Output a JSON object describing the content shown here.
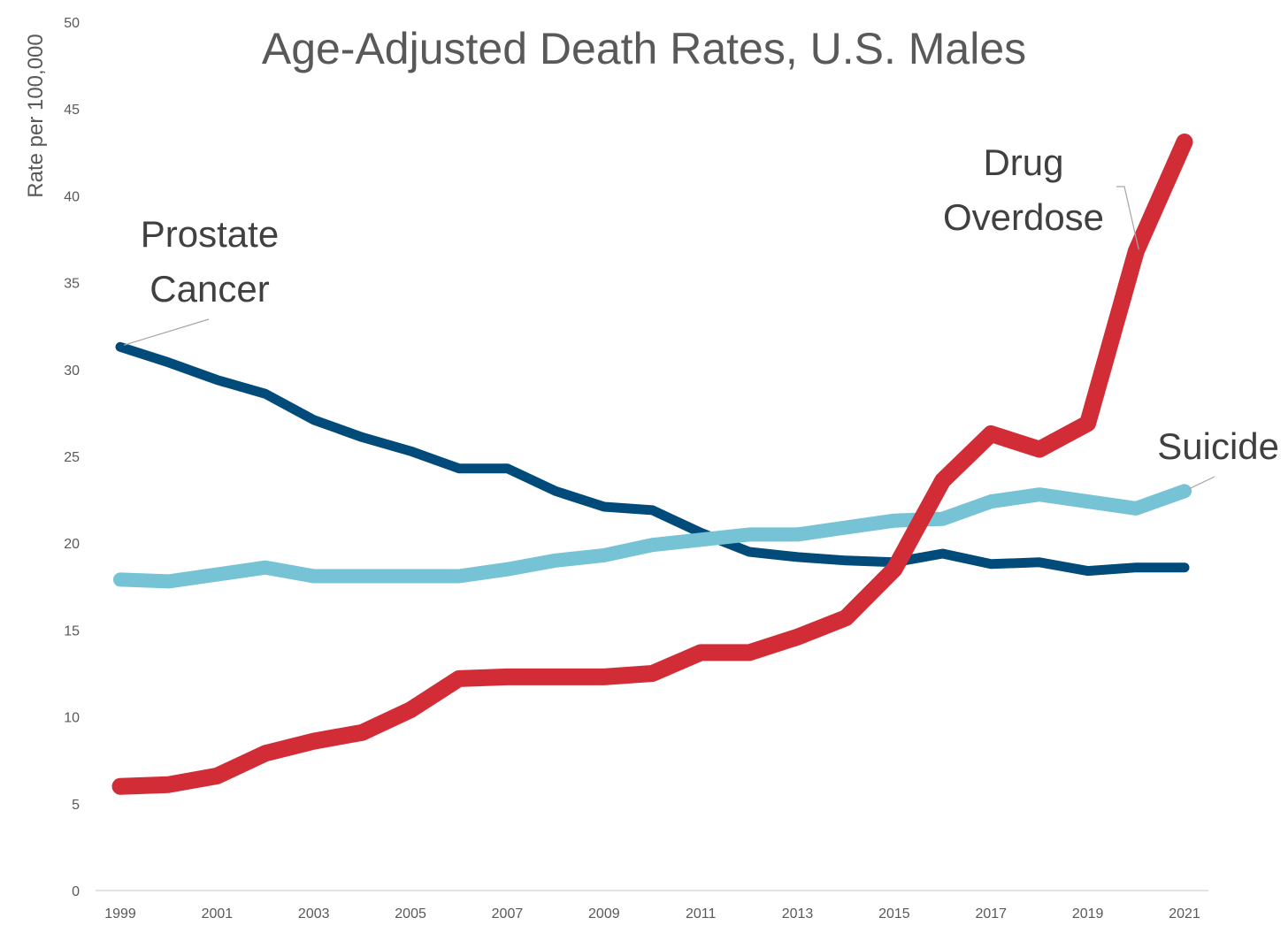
{
  "chart_data": {
    "type": "line",
    "title": "Age-Adjusted Death Rates, U.S. Males",
    "xlabel": "",
    "ylabel": "Rate per 100,000",
    "ylim": [
      0,
      50
    ],
    "yticks": [
      0,
      5,
      10,
      15,
      20,
      25,
      30,
      35,
      40,
      45,
      50
    ],
    "x": [
      1999,
      2000,
      2001,
      2002,
      2003,
      2004,
      2005,
      2006,
      2007,
      2008,
      2009,
      2010,
      2011,
      2012,
      2013,
      2014,
      2015,
      2016,
      2017,
      2018,
      2019,
      2020,
      2021
    ],
    "xtick_labels": [
      "1999",
      "2001",
      "2003",
      "2005",
      "2007",
      "2009",
      "2011",
      "2013",
      "2015",
      "2017",
      "2019",
      "2021"
    ],
    "grid": false,
    "legend": "none (series labeled directly by annotations)",
    "series": [
      {
        "name": "Prostate Cancer",
        "label_lines": [
          "Prostate",
          "Cancer"
        ],
        "color": "#004B7A",
        "values": [
          31.3,
          30.4,
          29.4,
          28.6,
          27.1,
          26.1,
          25.3,
          24.3,
          24.3,
          23.0,
          22.1,
          21.9,
          20.6,
          19.5,
          19.2,
          19.0,
          18.9,
          19.4,
          18.8,
          18.9,
          18.4,
          18.6,
          18.6
        ]
      },
      {
        "name": "Suicide",
        "label_lines": [
          "Suicide"
        ],
        "color": "#76C3D5",
        "values": [
          17.9,
          17.8,
          18.2,
          18.6,
          18.1,
          18.1,
          18.1,
          18.1,
          18.5,
          19.0,
          19.3,
          19.9,
          20.2,
          20.5,
          20.5,
          20.9,
          21.3,
          21.4,
          22.4,
          22.8,
          22.4,
          22.0,
          23.0
        ]
      },
      {
        "name": "Drug Overdose",
        "label_lines": [
          "Drug",
          "Overdose"
        ],
        "color": "#D22D37",
        "values": [
          6.0,
          6.1,
          6.6,
          7.9,
          8.6,
          9.1,
          10.4,
          12.2,
          12.3,
          12.3,
          12.3,
          12.5,
          13.7,
          13.7,
          14.6,
          15.7,
          18.5,
          23.6,
          26.3,
          25.4,
          26.9,
          36.8,
          43.1
        ]
      }
    ]
  }
}
